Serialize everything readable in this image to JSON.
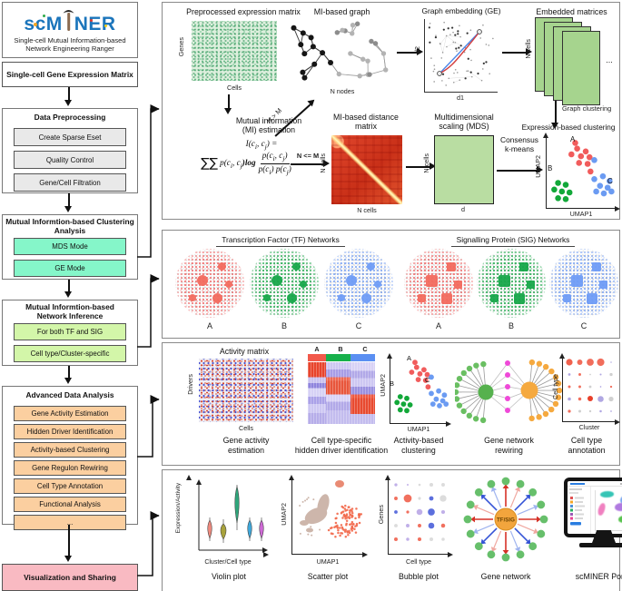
{
  "colors": {
    "logo_blue": "#1b75bb",
    "mint": "#85f6c9",
    "light_green": "#d3f6a9",
    "peach": "#fbcfa0",
    "pink": "#f9bac2",
    "cluster_red": "#f15c5c",
    "cluster_green": "#12a839",
    "cluster_blue": "#6b9bf2",
    "heat_red": "#d9402a",
    "hub_orange": "#f2a53d",
    "hub_green": "#56b14e",
    "magenta": "#ef49d8"
  },
  "logo": {
    "name": "scMINER",
    "name_left": "scM",
    "name_right": "NER",
    "subtitle_line1": "Single-cell Mutual Information-based",
    "subtitle_line2": "Network Engineering Ranger"
  },
  "sidebar": {
    "input_box": "Single-cell Gene Expression Matrix",
    "preprocessing": {
      "title": "Data Preprocessing",
      "items": [
        "Create Sparse Eset",
        "Quality Control",
        "Gene/Cell Filtration"
      ]
    },
    "clustering": {
      "title_line1": "Mutual Informtion-based Clustering",
      "title_line2": "Analysis",
      "items": [
        "MDS Mode",
        "GE Mode"
      ]
    },
    "inference": {
      "title_line1": "Mutual Informtion-based",
      "title_line2": "Network Inference",
      "items": [
        "For both TF and SIG",
        "Cell type/Cluster-specific"
      ]
    },
    "advanced": {
      "title": "Advanced Data Analysis",
      "items": [
        "Gene Activity Estimation",
        "Hidden Driver Identification",
        "Activity-based Clustering",
        "Gene Regulon Rewiring",
        "Cell Type Annotation",
        "Functional Analysis",
        "..."
      ]
    },
    "visualization": "Visualization and Sharing"
  },
  "panel_clustering": {
    "expression_matrix": {
      "title": "Preprocessed expression matrix",
      "ylabel": "Genes",
      "xlabel": "Cells"
    },
    "mi_graph": {
      "title": "MI-based graph",
      "label": "N nodes"
    },
    "graph_embedding": {
      "title": "Graph embedding (GE)",
      "xlabel": "d1",
      "ylabel": "d2"
    },
    "embedded_matrices": {
      "title": "Embedded matrices",
      "ylabel": "N cells",
      "ellipsis": "...",
      "down_label": "Graph clustering"
    },
    "mi_estimation": {
      "line1": "Mutual information",
      "line2": "(MI) estimation"
    },
    "n_gt_m": "N > M",
    "n_le_m": "N <= M",
    "formula": {
      "f1": "I(c",
      "s1": "i",
      "f2": ", c",
      "s2": "j",
      "f3": ") =",
      "sum": "∑∑",
      "f4": "p(c",
      "s3": "i",
      "f5": ", c",
      "s4": "j",
      "f6": ")log",
      "n1": "p(c",
      "ns1": "i",
      "n2": ", c",
      "ns2": "j",
      "n3": ")",
      "d1": "p(c",
      "ds1": "i",
      "d2": ") p(c",
      "ds2": "j",
      "d3": ")"
    },
    "distance_matrix": {
      "title_line1": "MI-based distance",
      "title_line2": "matrix",
      "ylabel": "N cells",
      "xlabel": "N cells"
    },
    "mds": {
      "title_line1": "Multidimensional",
      "title_line2": "scaling (MDS)",
      "ylabel": "N cells",
      "xlabel": "d"
    },
    "kmeans": {
      "line1": "Consensus",
      "line2": "k-means"
    },
    "result_plot": {
      "title": "Expression-based clustering",
      "xlabel": "UMAP1",
      "ylabel": "UMAP2",
      "cluster_labels": [
        "A",
        "B",
        "C"
      ]
    }
  },
  "panel_networks": {
    "tf": {
      "title": "Transcription Factor (TF) Networks",
      "labels": [
        "A",
        "B",
        "C"
      ]
    },
    "sig": {
      "title": "Signalling Protein (SIG) Networks",
      "labels": [
        "A",
        "B",
        "C"
      ]
    }
  },
  "panel_analysis": {
    "activity_matrix": {
      "title": "Activity matrix",
      "ylabel": "Drivers",
      "xlabel": "Cells",
      "caption_line1": "Gene activity",
      "caption_line2": "estimation"
    },
    "hidden_driver": {
      "column_labels": [
        "A",
        "B",
        "C"
      ],
      "caption_line1": "Cell type-specific",
      "caption_line2": "hidden driver identification"
    },
    "activity_clustering": {
      "cluster_labels": [
        "A",
        "B",
        "C"
      ],
      "xlabel": "UMAP1",
      "ylabel": "UMAP2",
      "caption_line1": "Activity-based",
      "caption_line2": "clustering"
    },
    "rewiring": {
      "caption_line1": "Gene network",
      "caption_line2": "rewiring"
    },
    "annotation": {
      "ylabel": "Cell  type",
      "xlabel": "Cluster",
      "caption_line1": "Cell type",
      "caption_line2": "annotation"
    }
  },
  "panel_visualization": {
    "violin": {
      "ylabel": "Expression/Activity",
      "xlabel": "Cluster/Cell type",
      "caption": "Violin plot"
    },
    "scatter": {
      "ylabel": "UMAP2",
      "xlabel": "UMAP1",
      "caption": "Scatter plot"
    },
    "bubble": {
      "ylabel": "Genes",
      "xlabel": "Cell type",
      "caption": "Bubble plot"
    },
    "gene_network": {
      "hub_label": "TF/SIG",
      "caption": "Gene network"
    },
    "portal": {
      "caption": "scMINER Portal"
    }
  }
}
